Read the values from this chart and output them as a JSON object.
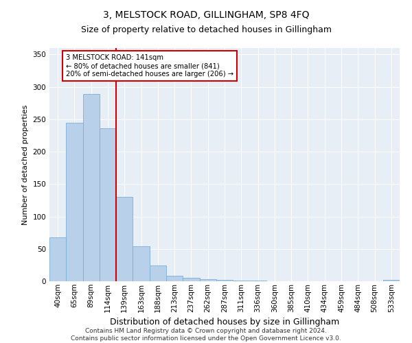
{
  "title": "3, MELSTOCK ROAD, GILLINGHAM, SP8 4FQ",
  "subtitle": "Size of property relative to detached houses in Gillingham",
  "xlabel": "Distribution of detached houses by size in Gillingham",
  "ylabel": "Number of detached properties",
  "categories": [
    "40sqm",
    "65sqm",
    "89sqm",
    "114sqm",
    "139sqm",
    "163sqm",
    "188sqm",
    "213sqm",
    "237sqm",
    "262sqm",
    "287sqm",
    "311sqm",
    "336sqm",
    "360sqm",
    "385sqm",
    "410sqm",
    "434sqm",
    "459sqm",
    "484sqm",
    "508sqm",
    "533sqm"
  ],
  "values": [
    68,
    245,
    289,
    236,
    130,
    54,
    24,
    8,
    5,
    3,
    2,
    1,
    1,
    0,
    0,
    0,
    0,
    0,
    0,
    0,
    2
  ],
  "bar_color": "#b8d0ea",
  "bar_edge_color": "#7aafd4",
  "background_color": "#e8eef6",
  "vline_x_index": 4,
  "vline_color": "#cc0000",
  "annotation_text": "3 MELSTOCK ROAD: 141sqm\n← 80% of detached houses are smaller (841)\n20% of semi-detached houses are larger (206) →",
  "annotation_box_color": "#ffffff",
  "annotation_box_edge": "#cc0000",
  "ylim": [
    0,
    360
  ],
  "yticks": [
    0,
    50,
    100,
    150,
    200,
    250,
    300,
    350
  ],
  "footer": "Contains HM Land Registry data © Crown copyright and database right 2024.\nContains public sector information licensed under the Open Government Licence v3.0.",
  "title_fontsize": 10,
  "subtitle_fontsize": 9,
  "xlabel_fontsize": 9,
  "ylabel_fontsize": 8,
  "tick_fontsize": 7.5,
  "footer_fontsize": 6.5
}
